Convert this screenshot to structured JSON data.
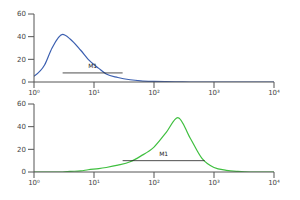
{
  "chart_data": [
    {
      "type": "line",
      "color": "#3b5fb0",
      "log": "x",
      "x": [
        1,
        1.5,
        2,
        3,
        4,
        6,
        8,
        12,
        16,
        25,
        40,
        60,
        100,
        160,
        250,
        400,
        630,
        1000,
        1600,
        2500,
        4000,
        6300,
        10000
      ],
      "values": [
        5,
        15,
        30,
        42,
        38,
        28,
        20,
        12,
        7,
        4,
        2,
        1,
        0.5,
        0.3,
        0.2,
        0,
        0,
        0,
        0,
        0,
        0,
        0,
        0
      ],
      "xlim": [
        1,
        10000
      ],
      "xticks": [
        {
          "value": 1,
          "label": "10⁰"
        },
        {
          "value": 10,
          "label": "10¹"
        },
        {
          "value": 100,
          "label": "10²"
        },
        {
          "value": 1000,
          "label": "10³"
        },
        {
          "value": 10000,
          "label": "10⁴"
        }
      ],
      "ylim": [
        0,
        60
      ],
      "yticks": [
        0,
        20,
        40,
        60
      ],
      "gate": {
        "label": "M1",
        "range": [
          3,
          30
        ],
        "y": 8
      }
    },
    {
      "type": "line",
      "color": "#3fbf3f",
      "log": "x",
      "x": [
        1,
        1.5,
        2,
        3,
        4,
        6,
        8,
        12,
        16,
        25,
        40,
        60,
        100,
        160,
        250,
        400,
        630,
        1000,
        1600,
        2500,
        4000,
        6300,
        10000
      ],
      "values": [
        0,
        0,
        0,
        0,
        0.5,
        1,
        2,
        3,
        4,
        6,
        9,
        14,
        22,
        35,
        48,
        30,
        12,
        4,
        1.5,
        0.5,
        0,
        0,
        0
      ],
      "xlim": [
        1,
        10000
      ],
      "xticks": [
        {
          "value": 1,
          "label": "10⁰"
        },
        {
          "value": 10,
          "label": "10¹"
        },
        {
          "value": 100,
          "label": "10²"
        },
        {
          "value": 1000,
          "label": "10³"
        },
        {
          "value": 10000,
          "label": "10⁴"
        }
      ],
      "ylim": [
        0,
        60
      ],
      "yticks": [
        0,
        20,
        40,
        60
      ],
      "gate": {
        "label": "M1",
        "range": [
          30,
          700
        ],
        "y": 10
      }
    }
  ]
}
